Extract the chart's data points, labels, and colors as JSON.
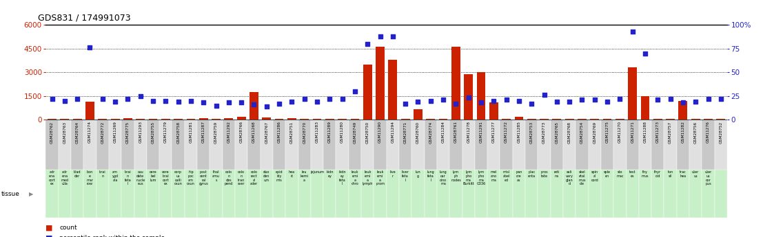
{
  "title": "GDS831 / 174991073",
  "samples": [
    "GSM28762",
    "GSM28763",
    "GSM28764",
    "GSM11274",
    "GSM28772",
    "GSM11269",
    "GSM28775",
    "GSM11293",
    "GSM28755",
    "GSM11279",
    "GSM28758",
    "GSM11281",
    "GSM11287",
    "GSM28759",
    "GSM11292",
    "GSM28766",
    "GSM11268",
    "GSM28767",
    "GSM11286",
    "GSM28751",
    "GSM28770",
    "GSM11283",
    "GSM11289",
    "GSM11280",
    "GSM28749",
    "GSM28750",
    "GSM11290",
    "GSM11294",
    "GSM28771",
    "GSM28760",
    "GSM28774",
    "GSM11284",
    "GSM28761",
    "GSM11278",
    "GSM11291",
    "GSM11277",
    "GSM11272",
    "GSM11285",
    "GSM28753",
    "GSM28773",
    "GSM28765",
    "GSM28768",
    "GSM28754",
    "GSM28769",
    "GSM11275",
    "GSM11270",
    "GSM11271",
    "GSM11288",
    "GSM11273",
    "GSM28757",
    "GSM11282",
    "GSM28756",
    "GSM11276",
    "GSM28752"
  ],
  "tissue_labels": [
    "adr\nena\ncort\nex",
    "adr\nena\nmed\nulla",
    "blad\nder",
    "bon\ne\nmar\nrow",
    "brai\nn",
    "am\nygd\nala",
    "brai\nn\nfeta\nl",
    "cau\ndate\nnucle\neus",
    "cere\nbel\nlum",
    "cere\nbral\ncort\nex",
    "corp\nus\ncalli\nosun",
    "hip\npoc\nam\nosun",
    "post\ncent\nral\ngyrus",
    "thal\namu\ns",
    "colo\nn\ndes\npend",
    "colo\nn\ntran\nsver",
    "colo\nrect\nal\nader",
    "duo\nden\num",
    "epid\nidy\nmis",
    "hea\nrt",
    "leu\nkemi\na",
    "jejunum",
    "kidn\ney",
    "kidn\ney\nfeta\nl",
    "leuk\nemi\na\nchro",
    "leuk\nemi\na\nlymph",
    "leuk\nemi\na\nprom",
    "live\nr",
    "liver\nfeta\nl",
    "lun\ng",
    "lung\nfeta\nl",
    "lung\ncar\ncino\nma",
    "lym\nph\nnodes",
    "lym\npho\nma\nBurkitt",
    "lym\npho\nma\nG336",
    "mel\nano\nma",
    "misl\nabel\ned",
    "pan\ncre\nas",
    "plac\nenta",
    "pros\ntate",
    "reti\nna",
    "sali\nvary\nglan\nd",
    "skel\netal\nmus\ncle",
    "spin\nal\ncord",
    "sple\nen",
    "sto\nmac",
    "test\nes",
    "thy\nmus",
    "thyr\noid",
    "ton\nsil",
    "trac\nhea",
    "uter\nus",
    "uter\nus\ncor\npus",
    ""
  ],
  "counts": [
    50,
    50,
    50,
    1150,
    50,
    50,
    100,
    50,
    50,
    50,
    50,
    50,
    100,
    50,
    100,
    200,
    1750,
    150,
    50,
    100,
    50,
    50,
    50,
    50,
    50,
    3500,
    4600,
    3800,
    50,
    650,
    50,
    50,
    4600,
    2900,
    3000,
    1100,
    50,
    200,
    50,
    50,
    50,
    50,
    50,
    50,
    50,
    50,
    3300,
    1500,
    50,
    50,
    1200,
    50,
    50,
    50
  ],
  "percentile_ranks": [
    22,
    20,
    22,
    76,
    22,
    19,
    22,
    25,
    20,
    20,
    19,
    20,
    18,
    15,
    18,
    18,
    16,
    14,
    17,
    19,
    22,
    19,
    22,
    22,
    30,
    80,
    88,
    88,
    17,
    19,
    20,
    21,
    17,
    23,
    18,
    20,
    21,
    20,
    17,
    26,
    19,
    19,
    21,
    21,
    19,
    22,
    93,
    70,
    21,
    22,
    18,
    19,
    22,
    22
  ],
  "ylim_left": [
    0,
    6000
  ],
  "ylim_right": [
    0,
    100
  ],
  "yticks_left": [
    0,
    1500,
    3000,
    4500,
    6000
  ],
  "yticks_right": [
    0,
    25,
    50,
    75,
    100
  ],
  "bar_color": "#cc2200",
  "dot_color": "#2222cc",
  "bg_color": "#ffffff",
  "tissue_bg": "#c8f0c8",
  "col_bg_even": "#c8c8c8",
  "col_bg_odd": "#e0e0e0"
}
